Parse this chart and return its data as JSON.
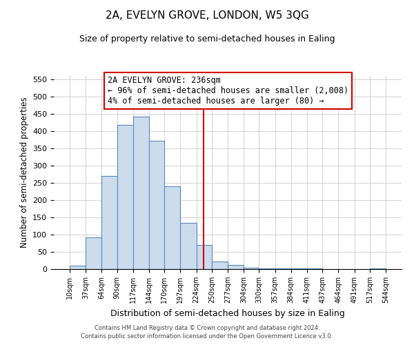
{
  "title": "2A, EVELYN GROVE, LONDON, W5 3QG",
  "subtitle": "Size of property relative to semi-detached houses in Ealing",
  "xlabel": "Distribution of semi-detached houses by size in Ealing",
  "ylabel": "Number of semi-detached properties",
  "bin_edges": [
    10,
    37,
    64,
    90,
    117,
    144,
    170,
    197,
    224,
    250,
    277,
    304,
    330,
    357,
    384,
    411,
    437,
    464,
    491,
    517,
    544
  ],
  "bar_heights": [
    10,
    93,
    270,
    418,
    443,
    373,
    240,
    135,
    70,
    23,
    13,
    4,
    3,
    3,
    3,
    2,
    0,
    0,
    0,
    3
  ],
  "bar_facecolor": "#ccdcec",
  "bar_edgecolor": "#5588bb",
  "property_value": 236,
  "vline_color": "#cc0000",
  "annotation_title": "2A EVELYN GROVE: 236sqm",
  "annotation_line1": "← 96% of semi-detached houses are smaller (2,008)",
  "annotation_line2": "4% of semi-detached houses are larger (80) →",
  "annotation_box_edgecolor": "#cc0000",
  "ylim": [
    0,
    560
  ],
  "yticks": [
    0,
    50,
    100,
    150,
    200,
    250,
    300,
    350,
    400,
    450,
    500,
    550
  ],
  "footer_line1": "Contains HM Land Registry data © Crown copyright and database right 2024.",
  "footer_line2": "Contains public sector information licensed under the Open Government Licence v3.0.",
  "background_color": "#ffffff",
  "grid_color": "#cccccc"
}
